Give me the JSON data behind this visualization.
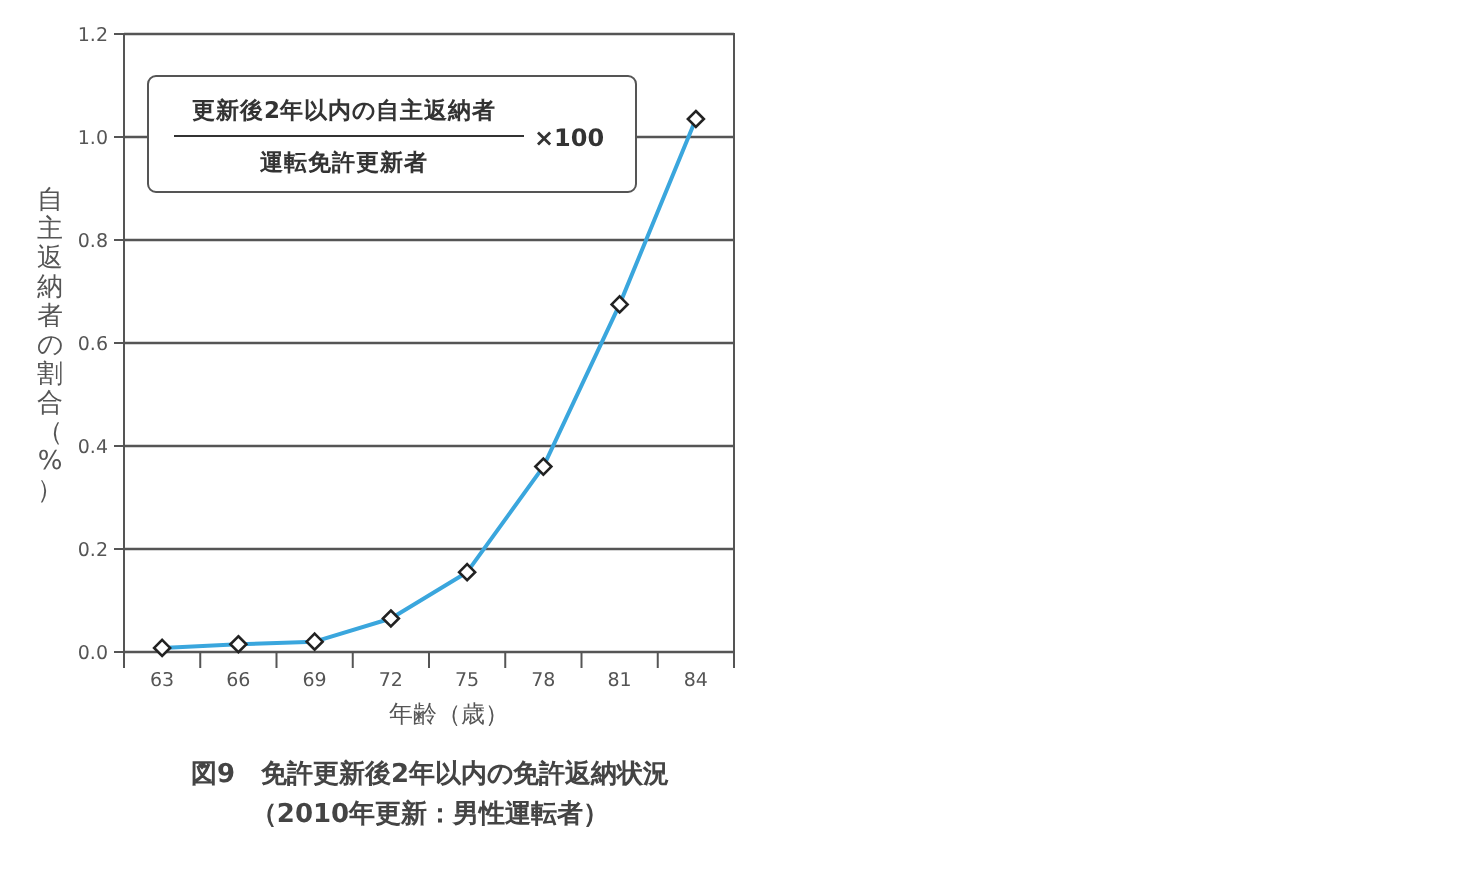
{
  "chart_data": {
    "type": "line",
    "title": "図9　免許更新後2年以内の免許返納状況",
    "subtitle": "（2010年更新：男性運転者）",
    "xlabel": "年齢（歳）",
    "ylabel": "自主返納者の割合（%）",
    "annotations": [
      "更新後2年以内の自主返納者",
      "運転免許更新者",
      "×100"
    ],
    "categories": [
      "63",
      "66",
      "69",
      "72",
      "75",
      "78",
      "81",
      "84"
    ],
    "series": [
      {
        "color": "#3aa6dd",
        "values": [
          0.008,
          0.015,
          0.02,
          0.065,
          0.155,
          0.36,
          0.675,
          1.035
        ]
      }
    ],
    "ylim": [
      0,
      1.2
    ],
    "yticks": [
      {
        "value": 0,
        "label": "0.0"
      },
      {
        "value": 0.2,
        "label": "0.2"
      },
      {
        "value": 0.4,
        "label": "0.4"
      },
      {
        "value": 0.6,
        "label": "0.6"
      },
      {
        "value": 0.8,
        "label": "0.8"
      },
      {
        "value": 1,
        "label": "1.0"
      },
      {
        "value": 1.2,
        "label": "1.2"
      }
    ],
    "grid": "y",
    "marker": "diamond",
    "line_style": "solid"
  }
}
